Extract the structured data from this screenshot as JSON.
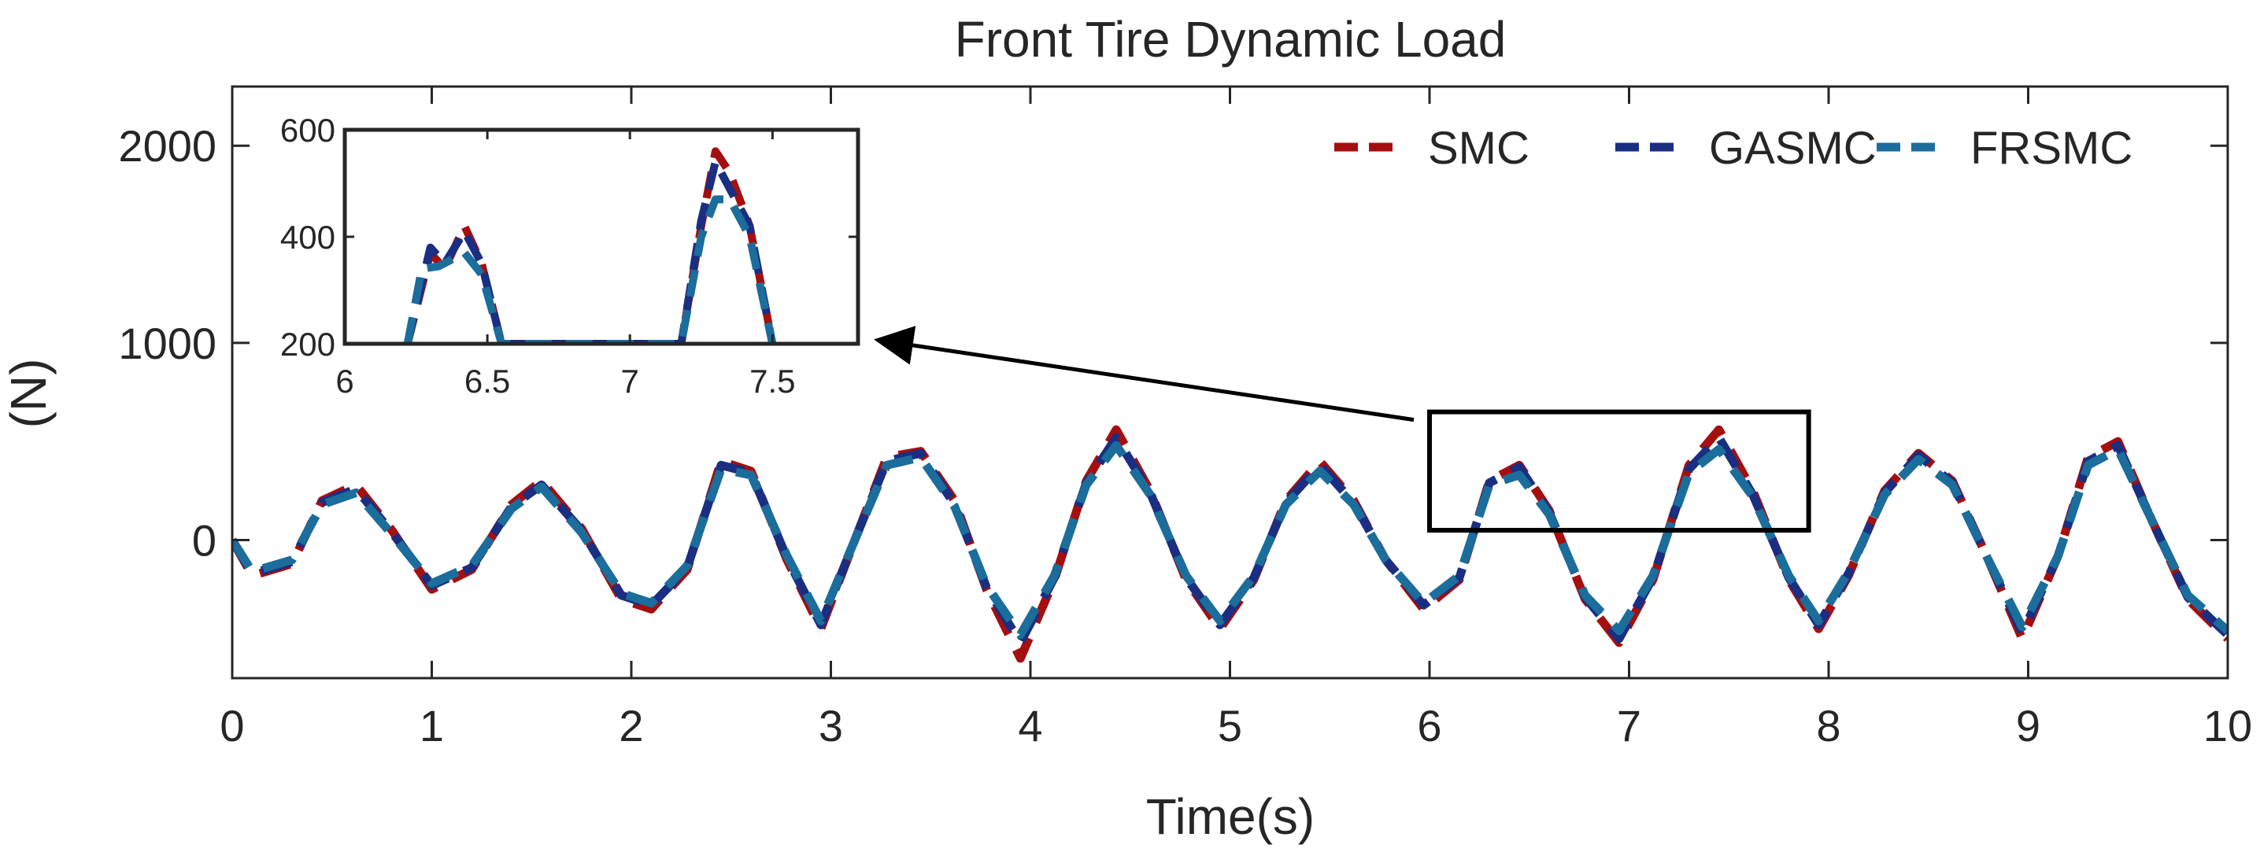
{
  "chart_data": {
    "type": "line",
    "title": "Front Tire Dynamic Load",
    "xlabel": "Time(s)",
    "ylabel": "(N)",
    "xlim": [
      0,
      10
    ],
    "ylim": [
      -700,
      2300
    ],
    "xticks": [
      0,
      1,
      2,
      3,
      4,
      5,
      6,
      7,
      8,
      9,
      10
    ],
    "xtick_labels": [
      "0",
      "1",
      "2",
      "3",
      "4",
      "5",
      "6",
      "7",
      "8",
      "9",
      "10"
    ],
    "yticks": [
      0,
      1000,
      2000
    ],
    "ytick_labels": [
      "0",
      "1000",
      "2000"
    ],
    "grid": false,
    "legend_position": "top-right",
    "series": [
      {
        "name": "SMC",
        "color": "#A50F0F",
        "style": "dashed",
        "x": [
          0,
          0.1,
          0.3,
          0.45,
          0.62,
          0.8,
          1.0,
          1.2,
          1.4,
          1.55,
          1.75,
          1.95,
          2.1,
          2.28,
          2.45,
          2.6,
          2.78,
          2.95,
          3.12,
          3.28,
          3.45,
          3.62,
          3.78,
          3.95,
          4.12,
          4.28,
          4.43,
          4.6,
          4.78,
          4.95,
          5.12,
          5.28,
          5.45,
          5.62,
          5.78,
          5.97,
          6.15,
          6.3,
          6.45,
          6.6,
          6.78,
          6.95,
          7.12,
          7.3,
          7.45,
          7.62,
          7.8,
          7.95,
          8.1,
          8.28,
          8.45,
          8.62,
          8.8,
          8.97,
          9.15,
          9.3,
          9.45,
          9.62,
          9.8,
          10.0
        ],
        "values": [
          0,
          -180,
          -120,
          200,
          280,
          50,
          -250,
          -150,
          180,
          300,
          60,
          -300,
          -350,
          -150,
          400,
          350,
          -100,
          -450,
          0,
          420,
          450,
          200,
          -250,
          -600,
          -200,
          300,
          560,
          250,
          -200,
          -450,
          -200,
          200,
          400,
          200,
          -100,
          -350,
          -200,
          300,
          380,
          150,
          -300,
          -520,
          -200,
          380,
          560,
          250,
          -200,
          -450,
          -180,
          250,
          440,
          300,
          -100,
          -500,
          -80,
          420,
          500,
          100,
          -300,
          -500
        ]
      },
      {
        "name": "GASMC",
        "color": "#1A2E82",
        "style": "dashed",
        "x": [
          0,
          0.1,
          0.3,
          0.45,
          0.62,
          0.8,
          1.0,
          1.2,
          1.4,
          1.55,
          1.75,
          1.95,
          2.1,
          2.28,
          2.45,
          2.6,
          2.78,
          2.95,
          3.12,
          3.28,
          3.45,
          3.62,
          3.78,
          3.95,
          4.12,
          4.28,
          4.43,
          4.6,
          4.78,
          4.95,
          5.12,
          5.28,
          5.45,
          5.62,
          5.78,
          5.97,
          6.15,
          6.3,
          6.45,
          6.6,
          6.78,
          6.95,
          7.12,
          7.3,
          7.45,
          7.62,
          7.8,
          7.95,
          8.1,
          8.28,
          8.45,
          8.62,
          8.8,
          8.97,
          9.15,
          9.3,
          9.45,
          9.62,
          9.8,
          10.0
        ],
        "values": [
          0,
          -170,
          -110,
          190,
          260,
          40,
          -230,
          -140,
          170,
          280,
          50,
          -280,
          -330,
          -140,
          380,
          340,
          -90,
          -430,
          0,
          400,
          440,
          180,
          -240,
          -520,
          -190,
          290,
          520,
          240,
          -190,
          -430,
          -190,
          190,
          380,
          190,
          -100,
          -330,
          -190,
          290,
          370,
          140,
          -290,
          -500,
          -190,
          360,
          520,
          230,
          -190,
          -430,
          -170,
          240,
          430,
          290,
          -100,
          -470,
          -80,
          400,
          480,
          100,
          -290,
          -480
        ]
      },
      {
        "name": "FRSMC",
        "color": "#1B6D9B",
        "style": "dashed",
        "x": [
          0,
          0.1,
          0.3,
          0.45,
          0.62,
          0.8,
          1.0,
          1.2,
          1.4,
          1.55,
          1.75,
          1.95,
          2.1,
          2.28,
          2.45,
          2.6,
          2.78,
          2.95,
          3.12,
          3.28,
          3.45,
          3.62,
          3.78,
          3.95,
          4.12,
          4.28,
          4.43,
          4.6,
          4.78,
          4.95,
          5.12,
          5.28,
          5.45,
          5.62,
          5.78,
          5.97,
          6.15,
          6.3,
          6.45,
          6.6,
          6.78,
          6.95,
          7.12,
          7.3,
          7.45,
          7.62,
          7.8,
          7.95,
          8.1,
          8.28,
          8.45,
          8.62,
          8.8,
          8.97,
          9.15,
          9.3,
          9.45,
          9.62,
          9.8,
          10.0
        ],
        "values": [
          0,
          -160,
          -100,
          180,
          240,
          30,
          -220,
          -130,
          160,
          270,
          40,
          -270,
          -320,
          -130,
          360,
          330,
          -80,
          -410,
          0,
          380,
          420,
          170,
          -230,
          -480,
          -180,
          280,
          480,
          230,
          -180,
          -410,
          -180,
          180,
          350,
          180,
          -100,
          -320,
          -180,
          280,
          330,
          130,
          -280,
          -460,
          -180,
          340,
          460,
          220,
          -180,
          -410,
          -160,
          230,
          410,
          280,
          -100,
          -440,
          -80,
          380,
          460,
          100,
          -280,
          -460
        ]
      }
    ],
    "inset": {
      "xlim": [
        6,
        7.8
      ],
      "ylim": [
        200,
        600
      ],
      "xticks": [
        6,
        6.5,
        7,
        7.5
      ],
      "xtick_labels": [
        "6",
        "6.5",
        "7",
        "7.5"
      ],
      "yticks": [
        200,
        400,
        600
      ],
      "ytick_labels": [
        "200",
        "400",
        "600"
      ],
      "zoom_region": {
        "x": [
          6,
          7.9
        ],
        "y": [
          50,
          650
        ]
      },
      "series": [
        {
          "name": "SMC",
          "x": [
            6.22,
            6.3,
            6.35,
            6.42,
            6.48,
            6.55,
            7.18,
            7.25,
            7.3,
            7.35,
            7.42,
            7.5
          ],
          "values": [
            200,
            370,
            340,
            420,
            350,
            200,
            200,
            420,
            560,
            520,
            420,
            200
          ]
        },
        {
          "name": "GASMC",
          "x": [
            6.22,
            6.3,
            6.35,
            6.42,
            6.48,
            6.55,
            7.18,
            7.25,
            7.3,
            7.35,
            7.42,
            7.5
          ],
          "values": [
            200,
            380,
            350,
            410,
            350,
            200,
            200,
            430,
            540,
            490,
            420,
            200
          ]
        },
        {
          "name": "FRSMC",
          "x": [
            6.22,
            6.27,
            6.33,
            6.42,
            6.48,
            6.55,
            7.18,
            7.25,
            7.3,
            7.35,
            7.42,
            7.5
          ],
          "values": [
            200,
            340,
            345,
            370,
            330,
            200,
            200,
            400,
            470,
            470,
            400,
            200
          ]
        }
      ]
    }
  }
}
